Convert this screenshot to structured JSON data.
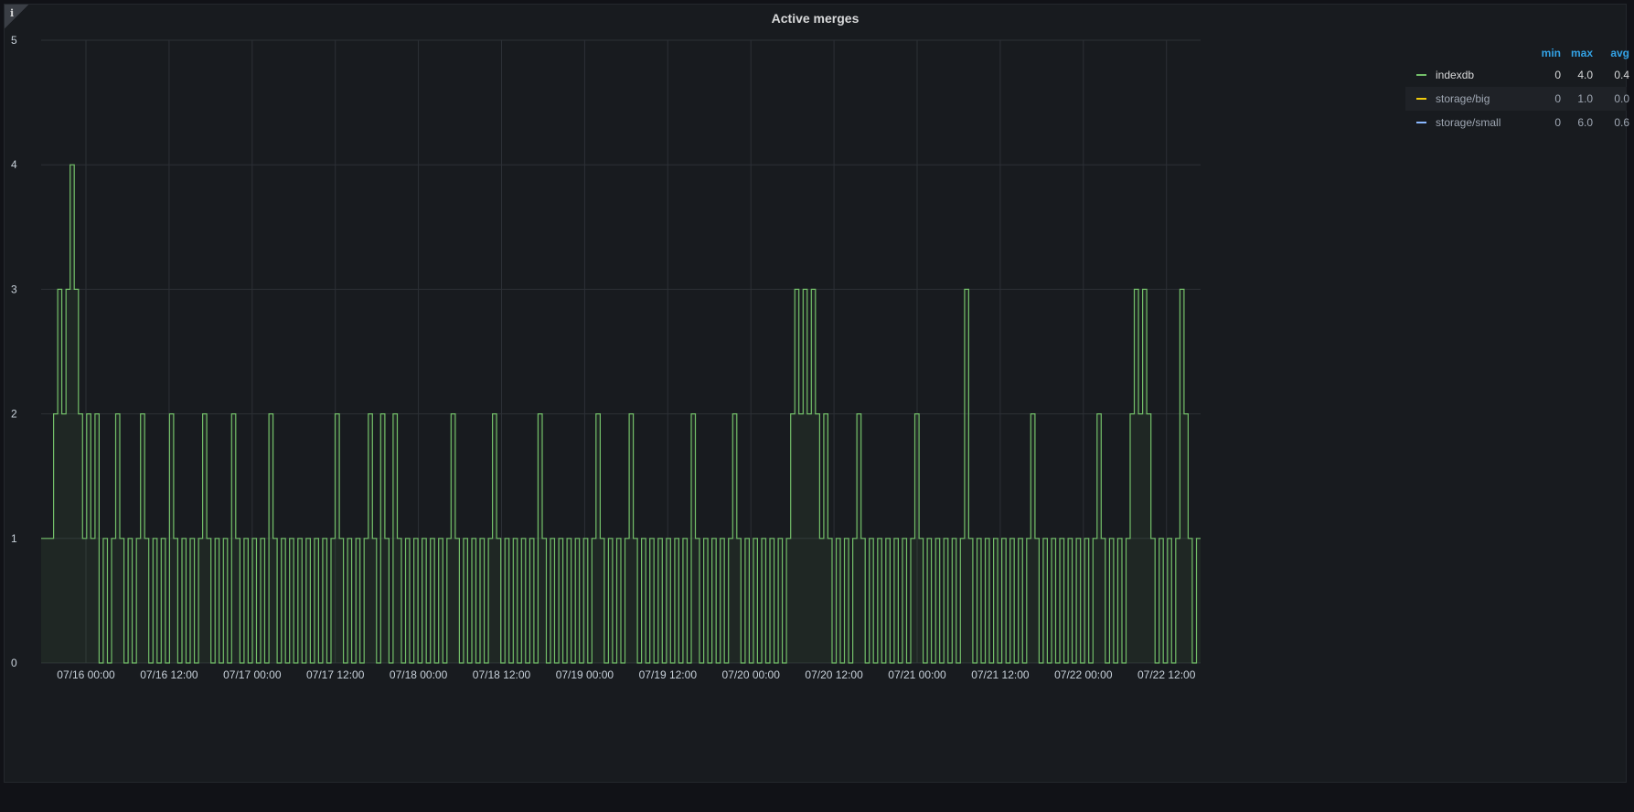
{
  "panel": {
    "title": "Active merges",
    "info_icon": "info-icon"
  },
  "legend": {
    "headers": {
      "min": "min",
      "max": "max",
      "avg": "avg"
    },
    "items": [
      {
        "name": "indexdb",
        "color": "#73bf69",
        "min": "0",
        "max": "4.0",
        "avg": "0.4"
      },
      {
        "name": "storage/big",
        "color": "#f2cc0c",
        "min": "0",
        "max": "1.0",
        "avg": "0.0"
      },
      {
        "name": "storage/small",
        "color": "#8ab8ff",
        "min": "0",
        "max": "6.0",
        "avg": "0.6"
      }
    ]
  },
  "chart_data": {
    "type": "line",
    "title": "Active merges",
    "xlabel": "",
    "ylabel": "",
    "ylim": [
      0,
      5
    ],
    "yticks": [
      "0",
      "1",
      "2",
      "3",
      "4",
      "5"
    ],
    "xticks": [
      "07/16 00:00",
      "07/16 12:00",
      "07/17 00:00",
      "07/17 12:00",
      "07/18 00:00",
      "07/18 12:00",
      "07/19 00:00",
      "07/19 12:00",
      "07/20 00:00",
      "07/20 12:00",
      "07/21 00:00",
      "07/21 12:00",
      "07/22 00:00",
      "07/22 12:00"
    ],
    "grid": true,
    "legend_position": "right",
    "series": [
      {
        "name": "indexdb",
        "color": "#73bf69",
        "description": "step series, approx. values over time (07/15 ~19:00 to 07/22 ~17:00)",
        "values": [
          1,
          1,
          1,
          2,
          3,
          2,
          3,
          4,
          3,
          2,
          1,
          2,
          1,
          2,
          0,
          1,
          0,
          1,
          2,
          1,
          0,
          1,
          0,
          1,
          2,
          1,
          0,
          1,
          0,
          1,
          0,
          2,
          1,
          0,
          1,
          0,
          1,
          0,
          1,
          2,
          1,
          0,
          1,
          0,
          1,
          0,
          2,
          1,
          0,
          1,
          0,
          1,
          0,
          1,
          0,
          2,
          1,
          0,
          1,
          0,
          1,
          0,
          1,
          0,
          1,
          0,
          1,
          0,
          1,
          0,
          1,
          2,
          1,
          0,
          1,
          0,
          1,
          0,
          1,
          2,
          1,
          0,
          2,
          1,
          0,
          2,
          1,
          0,
          1,
          0,
          1,
          0,
          1,
          0,
          1,
          0,
          1,
          0,
          1,
          2,
          1,
          0,
          1,
          0,
          1,
          0,
          1,
          0,
          1,
          2,
          1,
          0,
          1,
          0,
          1,
          0,
          1,
          0,
          1,
          0,
          2,
          1,
          0,
          1,
          0,
          1,
          0,
          1,
          0,
          1,
          0,
          1,
          0,
          1,
          2,
          1,
          0,
          1,
          0,
          1,
          0,
          1,
          2,
          1,
          0,
          1,
          0,
          1,
          0,
          1,
          0,
          1,
          0,
          1,
          0,
          1,
          0,
          2,
          1,
          0,
          1,
          0,
          1,
          0,
          1,
          0,
          1,
          2,
          1,
          0,
          1,
          0,
          1,
          0,
          1,
          0,
          1,
          0,
          1,
          0,
          1,
          2,
          3,
          2,
          3,
          2,
          3,
          2,
          1,
          2,
          1,
          0,
          1,
          0,
          1,
          0,
          1,
          2,
          1,
          0,
          1,
          0,
          1,
          0,
          1,
          0,
          1,
          0,
          1,
          0,
          1,
          2,
          1,
          0,
          1,
          0,
          1,
          0,
          1,
          0,
          1,
          0,
          1,
          3,
          1,
          0,
          1,
          0,
          1,
          0,
          1,
          0,
          1,
          0,
          1,
          0,
          1,
          0,
          1,
          2,
          1,
          0,
          1,
          0,
          1,
          0,
          1,
          0,
          1,
          0,
          1,
          0,
          1,
          0,
          1,
          2,
          1,
          0,
          1,
          0,
          1,
          0,
          1,
          2,
          3,
          2,
          3,
          2,
          1,
          0,
          1,
          0,
          1,
          0,
          1,
          3,
          2,
          1,
          0,
          1
        ]
      }
    ]
  }
}
